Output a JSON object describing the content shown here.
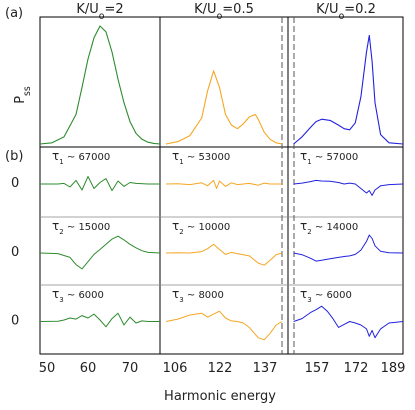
{
  "panel_labels": [
    "(a)",
    "(b)"
  ],
  "ylabel_top": "P",
  "ylabel_top_sub": "ss",
  "xlabel": "Harmonic energy",
  "zero_label": "0",
  "columns": [
    {
      "title": "K/U",
      "title_sub": "o",
      "title_tail": "=2",
      "color": "#2e8b2e",
      "ticks": [
        "50",
        "60",
        "70"
      ],
      "taus": [
        "τ",
        "τ",
        "τ"
      ]
    },
    {
      "title": "K/U",
      "title_sub": "o",
      "title_tail": "=0.5",
      "color": "#f5a623",
      "ticks": [
        "106",
        "122",
        "137"
      ]
    },
    {
      "title": "K/U",
      "title_sub": "o",
      "title_tail": "=0.2",
      "color": "#2222dd",
      "ticks": [
        "157",
        "172",
        "189"
      ]
    }
  ],
  "taus": [
    [
      "67000",
      "15000",
      "6000"
    ],
    [
      "53000",
      "10000",
      "8000"
    ],
    [
      "57000",
      "14000",
      "6000"
    ]
  ],
  "chart_data": {
    "type": "line",
    "xlabel": "Harmonic energy",
    "panels": {
      "a": {
        "ylabel": "Pss",
        "series": [
          {
            "x": [
              50,
              52,
              54,
              56,
              57,
              58,
              59,
              60,
              61,
              62,
              63,
              64,
              65,
              66,
              67,
              68,
              69,
              70
            ],
            "values": [
              0.0,
              0.01,
              0.06,
              0.25,
              0.48,
              0.72,
              0.9,
              1.0,
              0.95,
              0.78,
              0.55,
              0.35,
              0.19,
              0.09,
              0.04,
              0.015,
              0.005,
              0.0
            ]
          },
          {
            "x": [
              106,
              110,
              114,
              118,
              120,
              122,
              124,
              126,
              128,
              130,
              132,
              134,
              136,
              137,
              139,
              141,
              143,
              145
            ],
            "values": [
              0.0,
              0.02,
              0.07,
              0.22,
              0.45,
              0.62,
              0.48,
              0.25,
              0.16,
              0.13,
              0.17,
              0.23,
              0.25,
              0.21,
              0.1,
              0.04,
              0.01,
              0.0
            ]
          },
          {
            "x": [
              150,
              153,
              156,
              158,
              160,
              163,
              166,
              168,
              170,
              172,
              174,
              176,
              177,
              178,
              179,
              181,
              184,
              189
            ],
            "values": [
              0.0,
              0.06,
              0.14,
              0.19,
              0.21,
              0.2,
              0.16,
              0.13,
              0.12,
              0.18,
              0.4,
              0.78,
              0.92,
              0.7,
              0.35,
              0.08,
              0.01,
              0.0
            ]
          }
        ]
      },
      "b": {
        "ylabel": "",
        "rows": [
          [
            {
              "x": [
                50,
                53,
                54,
                55,
                56,
                57,
                58,
                59,
                60,
                61,
                62,
                63,
                64,
                65,
                66,
                68,
                70
              ],
              "values": [
                0,
                0,
                0.02,
                -0.1,
                0.12,
                -0.2,
                0.25,
                -0.15,
                0.05,
                0.18,
                -0.22,
                0.1,
                -0.08,
                0.05,
                0.02,
                0,
                0
              ]
            },
            {
              "x": [
                106,
                110,
                114,
                118,
                120,
                122,
                123,
                124,
                126,
                128,
                130,
                134,
                137,
                139,
                141,
                145
              ],
              "values": [
                0,
                0.01,
                -0.02,
                0.04,
                -0.06,
                0.12,
                -0.15,
                0.1,
                -0.08,
                0.04,
                -0.02,
                0.02,
                -0.04,
                0.03,
                0.0,
                0
              ]
            },
            {
              "x": [
                150,
                153,
                156,
                158,
                160,
                163,
                166,
                168,
                170,
                172,
                174,
                176,
                177,
                178,
                179,
                181,
                184,
                189
              ],
              "values": [
                0,
                0.03,
                0.08,
                0.12,
                0.1,
                0.09,
                0.05,
                0.0,
                0.03,
                0.0,
                -0.15,
                -0.3,
                -0.22,
                -0.38,
                -0.2,
                -0.06,
                -0.02,
                0
              ]
            }
          ],
          [
            {
              "x": [
                50,
                53,
                55,
                56,
                57,
                58,
                59,
                60,
                61,
                62,
                63,
                64,
                65,
                66,
                67,
                68,
                70
              ],
              "values": [
                0,
                -0.02,
                -0.15,
                -0.4,
                -0.55,
                -0.3,
                -0.05,
                0.12,
                0.3,
                0.48,
                0.58,
                0.45,
                0.3,
                0.18,
                0.08,
                0.02,
                0
              ]
            },
            {
              "x": [
                106,
                110,
                114,
                118,
                120,
                122,
                124,
                126,
                128,
                130,
                134,
                137,
                139,
                141,
                143,
                145
              ],
              "values": [
                0,
                0.01,
                0.0,
                0.05,
                0.15,
                0.3,
                0.12,
                -0.05,
                0.02,
                -0.02,
                -0.1,
                -0.35,
                -0.42,
                -0.25,
                -0.06,
                0
              ]
            },
            {
              "x": [
                150,
                153,
                156,
                158,
                160,
                163,
                166,
                168,
                170,
                172,
                174,
                176,
                177,
                178,
                179,
                181,
                184,
                189
              ],
              "values": [
                0,
                -0.06,
                -0.18,
                -0.28,
                -0.25,
                -0.2,
                -0.15,
                -0.12,
                -0.1,
                -0.05,
                0.1,
                0.4,
                0.62,
                0.5,
                0.25,
                0.06,
                0.01,
                0
              ]
            }
          ],
          [
            {
              "x": [
                50,
                53,
                54,
                55,
                56,
                57,
                58,
                59,
                60,
                61,
                62,
                63,
                64,
                65,
                66,
                67,
                68,
                70
              ],
              "values": [
                0,
                0.01,
                0.05,
                0.12,
                0.08,
                0.2,
                0.12,
                0.25,
                0.05,
                -0.18,
                0.1,
                0.28,
                -0.12,
                0.15,
                -0.05,
                0.02,
                0,
                0
              ]
            },
            {
              "x": [
                106,
                110,
                114,
                118,
                120,
                122,
                124,
                126,
                128,
                130,
                132,
                134,
                137,
                139,
                141,
                143,
                145
              ],
              "values": [
                0,
                0.08,
                0.22,
                0.28,
                0.15,
                0.25,
                0.35,
                0.12,
                0.02,
                0.0,
                -0.05,
                -0.2,
                -0.55,
                -0.62,
                -0.4,
                -0.12,
                0
              ]
            },
            {
              "x": [
                150,
                153,
                156,
                158,
                160,
                162,
                164,
                166,
                168,
                170,
                172,
                174,
                176,
                177,
                178,
                179,
                181,
                184,
                189
              ],
              "values": [
                0,
                0.1,
                0.3,
                0.4,
                0.52,
                0.35,
                0.1,
                -0.2,
                -0.1,
                0.0,
                -0.05,
                -0.12,
                -0.25,
                -0.5,
                -0.3,
                -0.55,
                -0.25,
                -0.05,
                0
              ]
            }
          ]
        ]
      }
    }
  }
}
